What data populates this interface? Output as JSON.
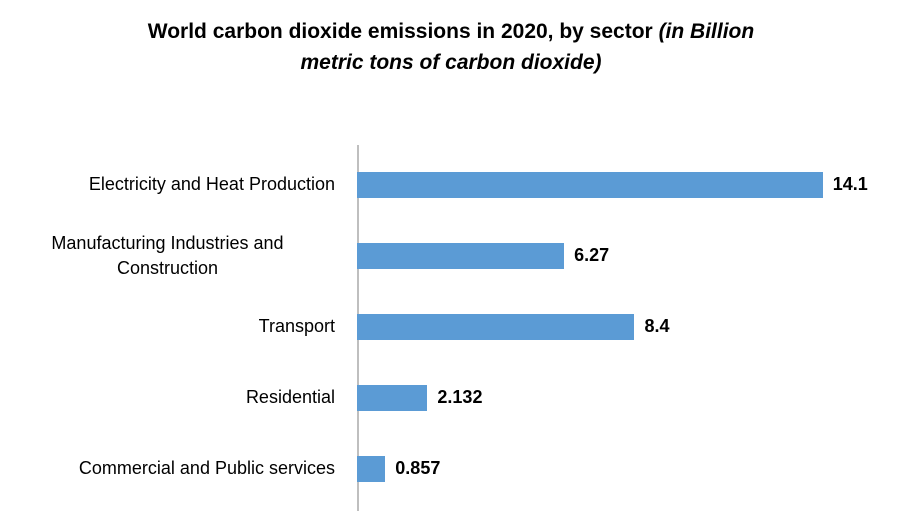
{
  "title": {
    "main": "World carbon dioxide emissions in 2020, by sector ",
    "italic": "(in Billion metric tons of carbon dioxide)"
  },
  "chart_data": {
    "type": "bar",
    "orientation": "horizontal",
    "title": "World carbon dioxide emissions in 2020, by sector (in Billion metric tons of carbon dioxide)",
    "categories": [
      "Electricity and Heat Production",
      "Manufacturing Industries and Construction",
      "Transport",
      "Residential",
      "Commercial and Public services"
    ],
    "values": [
      14.1,
      6.27,
      8.4,
      2.132,
      0.857
    ],
    "value_labels": [
      "14.1",
      "6.27",
      "8.4",
      "2.132",
      "0.857"
    ],
    "xlabel": "",
    "ylabel": "",
    "xlim": [
      0,
      16.5
    ],
    "grid": false,
    "legend": false,
    "bar_color": "#5b9bd5",
    "axis_line_color": "#bfbfbf",
    "label_color": "#000000"
  }
}
